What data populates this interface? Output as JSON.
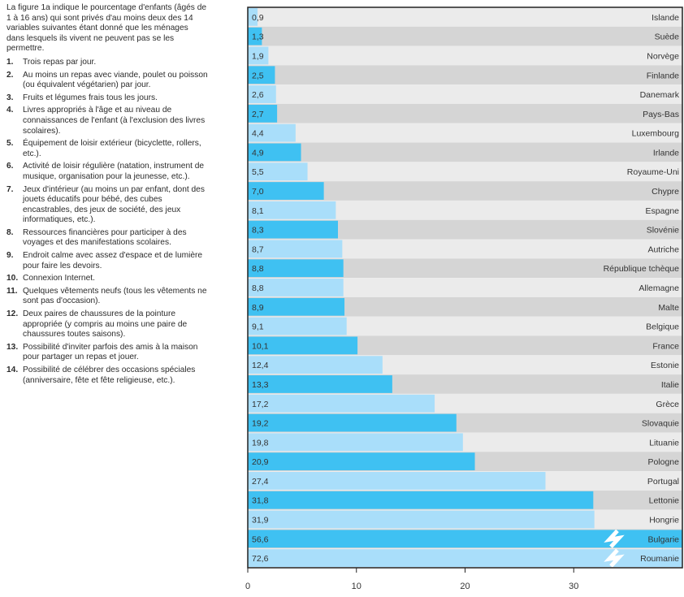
{
  "text_panel": {
    "intro": "La figure 1a indique le pourcentage d'enfants (âgés de 1 à 16 ans) qui sont privés d'au moins deux des 14 variables suivantes étant donné que les ménages dans lesquels ils vivent ne peuvent pas se les permettre.",
    "criteria": [
      {
        "num": "1.",
        "text": "Trois repas par jour."
      },
      {
        "num": "2.",
        "text": "Au moins un repas avec viande, poulet ou poisson (ou équivalent végétarien) par jour."
      },
      {
        "num": "3.",
        "text": "Fruits et légumes frais tous les jours."
      },
      {
        "num": "4.",
        "text": "Livres appropriés à l'âge et au niveau de connaissances de l'enfant (à l'exclusion des livres scolaires)."
      },
      {
        "num": "5.",
        "text": "Équipement de loisir extérieur (bicyclette, rollers, etc.)."
      },
      {
        "num": "6.",
        "text": "Activité de loisir régulière (natation, instrument de musique, organisation pour la jeunesse, etc.)."
      },
      {
        "num": "7.",
        "text": "Jeux d'intérieur (au moins un par enfant, dont des jouets éducatifs pour bébé, des cubes encastrables, des jeux de société, des jeux informatiques, etc.)."
      },
      {
        "num": "8.",
        "text": "Ressources financières pour participer à des voyages et des manifestations scolaires."
      },
      {
        "num": "9.",
        "text": "Endroit calme avec assez d'espace et de lumière pour faire les devoirs."
      },
      {
        "num": "10.",
        "text": "Connexion Internet."
      },
      {
        "num": "11.",
        "text": "Quelques vêtements neufs (tous les vêtements ne sont pas d'occasion)."
      },
      {
        "num": "12.",
        "text": "Deux paires de chaussures de la pointure appropriée (y compris au moins une paire de chaussures toutes saisons)."
      },
      {
        "num": "13.",
        "text": "Possibilité d'inviter parfois des amis à la maison pour partager un repas et jouer."
      },
      {
        "num": "14.",
        "text": "Possibilité de célébrer des occasions spéciales (anniversaire, fête et fête religieuse, etc.)."
      }
    ]
  },
  "chart_data": {
    "type": "bar",
    "orientation": "horizontal",
    "categories": [
      "Islande",
      "Suède",
      "Norvège",
      "Finlande",
      "Danemark",
      "Pays-Bas",
      "Luxembourg",
      "Irlande",
      "Royaume-Uni",
      "Chypre",
      "Espagne",
      "Slovénie",
      "Autriche",
      "République tchèque",
      "Allemagne",
      "Malte",
      "Belgique",
      "France",
      "Estonie",
      "Italie",
      "Grèce",
      "Slovaquie",
      "Lituanie",
      "Pologne",
      "Portugal",
      "Lettonie",
      "Hongrie",
      "Bulgarie",
      "Roumanie"
    ],
    "values": [
      0.9,
      1.3,
      1.9,
      2.5,
      2.6,
      2.7,
      4.4,
      4.9,
      5.5,
      7.0,
      8.1,
      8.3,
      8.7,
      8.8,
      8.8,
      8.9,
      9.1,
      10.1,
      12.4,
      13.3,
      17.2,
      19.2,
      19.8,
      20.9,
      27.4,
      31.8,
      31.9,
      56.6,
      72.6
    ],
    "value_labels": [
      "0,9",
      "1,3",
      "1,9",
      "2,5",
      "2,6",
      "2,7",
      "4,4",
      "4,9",
      "5,5",
      "7,0",
      "8,1",
      "8,3",
      "8,7",
      "8,8",
      "8,8",
      "8,9",
      "9,1",
      "10,1",
      "12,4",
      "13,3",
      "17,2",
      "19,2",
      "19,8",
      "20,9",
      "27,4",
      "31,8",
      "31,9",
      "56,6",
      "72,6"
    ],
    "x_ticks": [
      0,
      10,
      20,
      30
    ],
    "xlim": [
      0,
      40
    ],
    "axis_break": true,
    "grid": false,
    "colors": {
      "bar_dark": "#3fc1f2",
      "bar_light": "#a9defa",
      "row_dark": "#d5d5d5",
      "row_light": "#ebebeb",
      "frame": "#222222",
      "break": "#ffffff"
    }
  }
}
